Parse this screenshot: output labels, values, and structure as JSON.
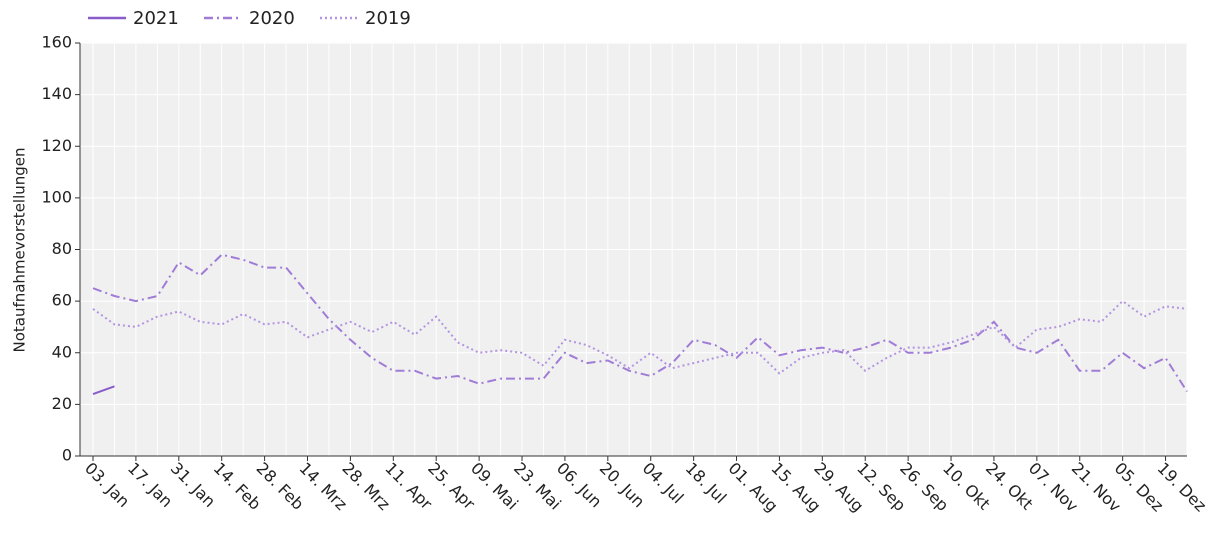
{
  "chart_data": {
    "type": "line",
    "y_label": "Notaufnahmevorstellungen",
    "categories": [
      "03. Jan",
      null,
      "17. Jan",
      null,
      "31. Jan",
      null,
      "14. Feb",
      null,
      "28. Feb",
      null,
      "14. Mrz",
      null,
      "28. Mrz",
      null,
      "11. Apr",
      null,
      "25. Apr",
      null,
      "09. Mai",
      null,
      "23. Mai",
      null,
      "06. Jun",
      null,
      "20. Jun",
      null,
      "04. Jul",
      null,
      "18. Jul",
      null,
      "01. Aug",
      null,
      "15. Aug",
      null,
      "29. Aug",
      null,
      "12. Sep",
      null,
      "26. Sep",
      null,
      "10. Okt",
      null,
      "24. Okt",
      null,
      "07. Nov",
      null,
      "21. Nov",
      null,
      "05. Dez",
      null,
      "19. Dez",
      null
    ],
    "series": [
      {
        "name": "2021",
        "color": "#8a5cc9",
        "dash": "solid",
        "values": [
          24,
          27,
          null,
          null,
          null,
          null,
          null,
          null,
          null,
          null,
          null,
          null,
          null,
          null,
          null,
          null,
          null,
          null,
          null,
          null,
          null,
          null,
          null,
          null,
          null,
          null,
          null,
          null,
          null,
          null,
          null,
          null,
          null,
          null,
          null,
          null,
          null,
          null,
          null,
          null,
          null,
          null,
          null,
          null,
          null,
          null,
          null,
          null,
          null,
          null,
          null,
          null
        ]
      },
      {
        "name": "2020",
        "color": "#a07cd6",
        "dash": "dashdot",
        "values": [
          65,
          62,
          60,
          62,
          75,
          70,
          78,
          76,
          73,
          73,
          63,
          53,
          45,
          38,
          33,
          33,
          30,
          31,
          28,
          30,
          30,
          30,
          40,
          36,
          37,
          33,
          31,
          36,
          45,
          43,
          38,
          46,
          39,
          41,
          42,
          40,
          42,
          45,
          40,
          40,
          42,
          45,
          52,
          42,
          40,
          45,
          33,
          33,
          40,
          34,
          38,
          25
        ]
      },
      {
        "name": "2019",
        "color": "#b394e0",
        "dash": "dot",
        "values": [
          57,
          51,
          50,
          54,
          56,
          52,
          51,
          55,
          51,
          52,
          46,
          49,
          52,
          48,
          52,
          47,
          54,
          44,
          40,
          41,
          40,
          35,
          45,
          43,
          39,
          34,
          40,
          34,
          36,
          38,
          40,
          40,
          32,
          38,
          40,
          41,
          33,
          38,
          42,
          42,
          44,
          47,
          50,
          42,
          49,
          50,
          53,
          52,
          60,
          54,
          58,
          57
        ]
      }
    ],
    "ylim": [
      0,
      160
    ],
    "yticks": [
      0,
      20,
      40,
      60,
      80,
      100,
      120,
      140,
      160
    ],
    "grid": true
  }
}
